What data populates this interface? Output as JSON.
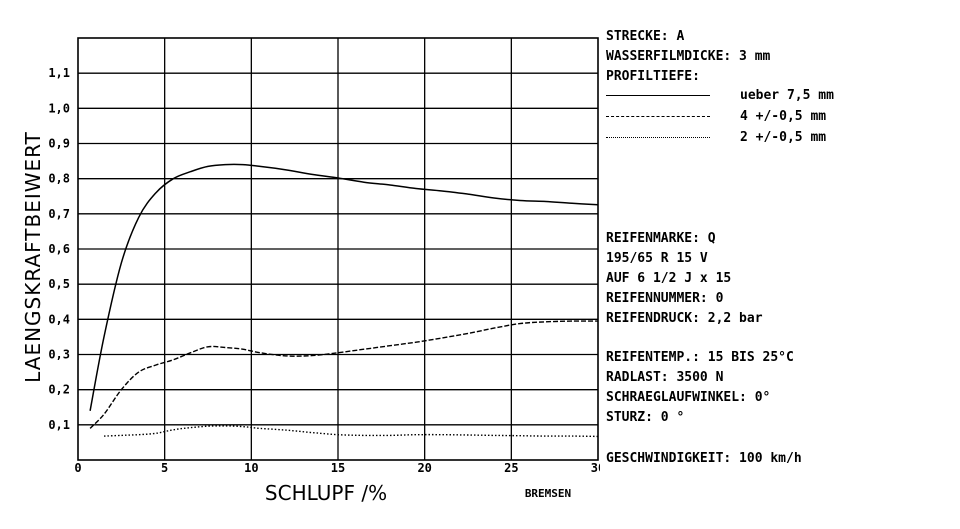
{
  "chart_data": {
    "type": "line",
    "xlabel": "SCHLUPF /%",
    "xlabel_note": "BREMSEN",
    "ylabel": "LAENGSKRAFTBEIWERT",
    "xlim": [
      0,
      30
    ],
    "ylim": [
      0,
      1.2
    ],
    "x_ticks": [
      0,
      5,
      10,
      15,
      20,
      25,
      30
    ],
    "x_tick_labels": [
      "0",
      "5",
      "10",
      "15",
      "20",
      "25",
      "30"
    ],
    "y_ticks": [
      0.1,
      0.2,
      0.3,
      0.4,
      0.5,
      0.6,
      0.7,
      0.8,
      0.9,
      1.0,
      1.1
    ],
    "y_tick_labels": [
      "0,1",
      "0,2",
      "0,3",
      "0,4",
      "0,5",
      "0,6",
      "0,7",
      "0,8",
      "0,9",
      "1,0",
      "1,1"
    ],
    "grid": true,
    "series": [
      {
        "name": "ueber 7,5 mm",
        "style": "solid",
        "x": [
          0.7,
          1.5,
          2.5,
          3.5,
          4.5,
          5.5,
          6.5,
          7.5,
          8.5,
          9.5,
          10.5,
          12,
          13.5,
          15,
          16.5,
          18,
          19.5,
          21,
          22.5,
          24,
          25.5,
          27,
          28.5,
          30
        ],
        "y": [
          0.14,
          0.35,
          0.56,
          0.69,
          0.76,
          0.8,
          0.82,
          0.835,
          0.84,
          0.84,
          0.835,
          0.825,
          0.812,
          0.802,
          0.79,
          0.782,
          0.772,
          0.765,
          0.756,
          0.745,
          0.738,
          0.735,
          0.73,
          0.726
        ]
      },
      {
        "name": "4 +/-0,5 mm",
        "style": "dashed",
        "x": [
          0.7,
          1.5,
          2.5,
          3.5,
          4.5,
          5.5,
          6.5,
          7.5,
          8.5,
          9.5,
          10.5,
          12,
          13.5,
          15,
          16.5,
          18,
          19.5,
          21,
          22.5,
          24,
          25.5,
          27,
          28.5,
          30
        ],
        "y": [
          0.09,
          0.13,
          0.2,
          0.25,
          0.27,
          0.285,
          0.305,
          0.322,
          0.32,
          0.315,
          0.305,
          0.296,
          0.297,
          0.305,
          0.315,
          0.325,
          0.335,
          0.347,
          0.36,
          0.375,
          0.388,
          0.393,
          0.395,
          0.395
        ]
      },
      {
        "name": "2 +/-0,5 mm",
        "style": "dotted",
        "x": [
          1.5,
          2.5,
          3.5,
          4.5,
          5.5,
          6.5,
          7.5,
          8.5,
          9.5,
          10.5,
          12,
          13.5,
          15,
          16.5,
          18,
          19.5,
          21,
          22.5,
          24,
          25.5,
          27,
          28.5,
          30
        ],
        "y": [
          0.068,
          0.07,
          0.072,
          0.076,
          0.086,
          0.092,
          0.096,
          0.097,
          0.095,
          0.09,
          0.085,
          0.078,
          0.072,
          0.07,
          0.07,
          0.072,
          0.072,
          0.071,
          0.07,
          0.069,
          0.068,
          0.068,
          0.067
        ]
      }
    ]
  },
  "info": {
    "strecke": "STRECKE: A",
    "wasserfilm": "WASSERFILMDICKE: 3 mm",
    "profiltiefe": "PROFILTIEFE:",
    "reifenmarke": "REIFENMARKE: Q",
    "reifengroesse": "195/65 R 15 V",
    "felge": "AUF 6 1/2 J x 15",
    "reifennummer": "REIFENNUMMER: 0",
    "reifendruck": "REIFENDRUCK: 2,2 bar",
    "reifentemp": "REIFENTEMP.: 15 BIS 25°C",
    "radlast": "RADLAST: 3500 N",
    "schraeglauf": "SCHRAEGLAUFWINKEL: 0°",
    "sturz": "STURZ: 0 °",
    "geschwindigkeit": "GESCHWINDIGKEIT: 100 km/h"
  },
  "legend": [
    {
      "label": "ueber 7,5 mm",
      "style": "solid"
    },
    {
      "label": "4 +/-0,5 mm",
      "style": "dashed"
    },
    {
      "label": "2 +/-0,5 mm",
      "style": "dotted"
    }
  ]
}
